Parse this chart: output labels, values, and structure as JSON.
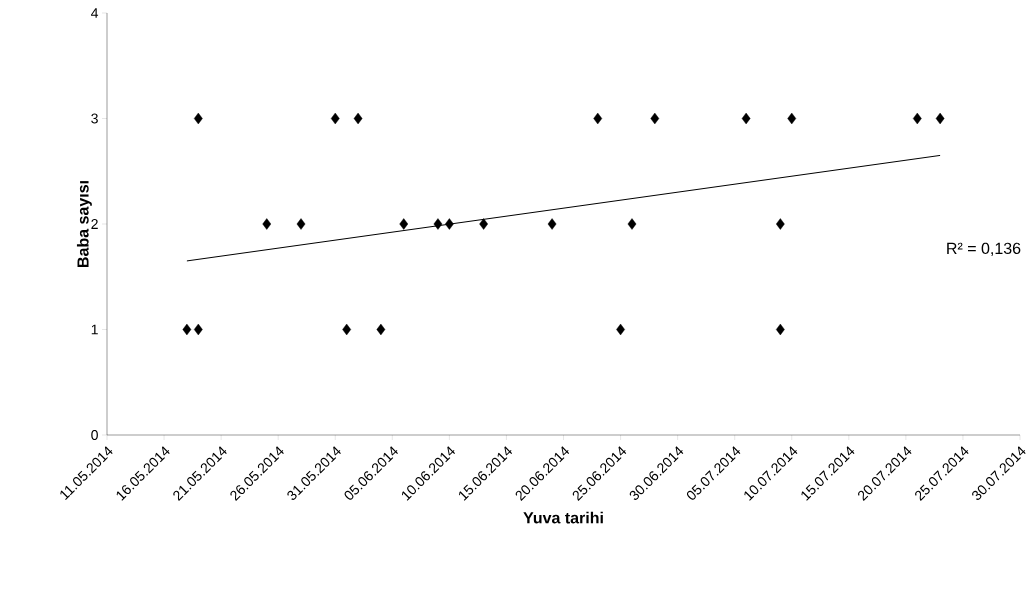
{
  "chart_data": {
    "type": "scatter",
    "xlabel": "Yuva tarihi",
    "ylabel": "Baba sayısı",
    "series": [
      {
        "color": "#000000",
        "marker": "diamond",
        "x": [
          "2014-05-18",
          "2014-05-19",
          "2014-05-19",
          "2014-05-25",
          "2014-05-28",
          "2014-05-31",
          "2014-06-01",
          "2014-06-02",
          "2014-06-04",
          "2014-06-06",
          "2014-06-09",
          "2014-06-10",
          "2014-06-13",
          "2014-06-19",
          "2014-06-23",
          "2014-06-25",
          "2014-06-26",
          "2014-06-28",
          "2014-07-06",
          "2014-07-09",
          "2014-07-09",
          "2014-07-10",
          "2014-07-21",
          "2014-07-23"
        ],
        "values": [
          1,
          1,
          3,
          2,
          2,
          3,
          1,
          3,
          1,
          2,
          2,
          2,
          2,
          2,
          3,
          1,
          2,
          3,
          3,
          2,
          1,
          3,
          3,
          3
        ]
      },
      {
        "type": "line",
        "color": "#000000",
        "marker": "none",
        "line_style": "solid",
        "x": [
          "2014-05-18",
          "2014-07-23"
        ],
        "values": [
          1.65,
          2.65
        ]
      }
    ],
    "xlim": [
      "2014-05-11",
      "2014-07-30"
    ],
    "xticks": [
      {
        "value": "2014-05-11",
        "label": "11.05.2014"
      },
      {
        "value": "2014-05-16",
        "label": "16.05.2014"
      },
      {
        "value": "2014-05-21",
        "label": "21.05.2014"
      },
      {
        "value": "2014-05-26",
        "label": "26.05.2014"
      },
      {
        "value": "2014-05-31",
        "label": "31.05.2014"
      },
      {
        "value": "2014-06-05",
        "label": "05.06.2014"
      },
      {
        "value": "2014-06-10",
        "label": "10.06.2014"
      },
      {
        "value": "2014-06-15",
        "label": "15.06.2014"
      },
      {
        "value": "2014-06-20",
        "label": "20.06.2014"
      },
      {
        "value": "2014-06-25",
        "label": "25.06.2014"
      },
      {
        "value": "2014-06-30",
        "label": "30.06.2014"
      },
      {
        "value": "2014-07-05",
        "label": "05.07.2014"
      },
      {
        "value": "2014-07-10",
        "label": "10.07.2014"
      },
      {
        "value": "2014-07-15",
        "label": "15.07.2014"
      },
      {
        "value": "2014-07-20",
        "label": "20.07.2014"
      },
      {
        "value": "2014-07-25",
        "label": "25.07.2014"
      },
      {
        "value": "2014-07-30",
        "label": "30.07.2014"
      }
    ],
    "ylim": [
      0,
      4
    ],
    "yticks": [
      0,
      1,
      2,
      3,
      4
    ],
    "annotations": [
      "R² = 0,136"
    ]
  }
}
